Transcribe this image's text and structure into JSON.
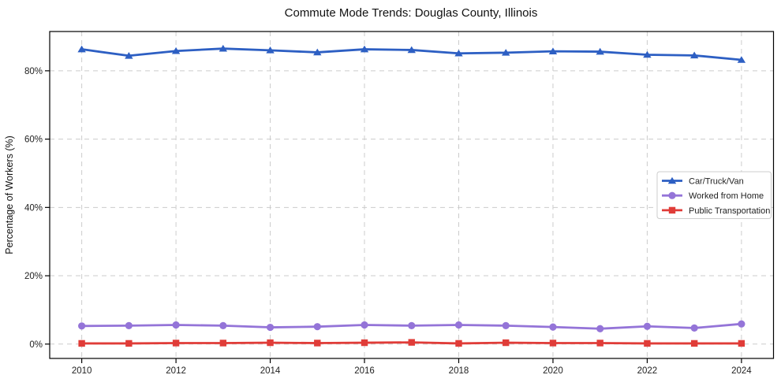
{
  "chart_data": {
    "type": "line",
    "title": "Commute Mode Trends: Douglas County, Illinois",
    "xlabel": "",
    "ylabel": "Percentage of Workers (%)",
    "x": [
      2010,
      2011,
      2012,
      2013,
      2014,
      2015,
      2016,
      2017,
      2018,
      2019,
      2020,
      2021,
      2022,
      2023,
      2024
    ],
    "series": [
      {
        "name": "Car/Truck/Van",
        "color": "#2d5fc3",
        "marker": "triangle",
        "values": [
          86.3,
          84.4,
          85.8,
          86.5,
          86.0,
          85.4,
          86.3,
          86.1,
          85.1,
          85.3,
          85.7,
          85.6,
          84.7,
          84.5,
          83.2
        ]
      },
      {
        "name": "Worked from Home",
        "color": "#9474d8",
        "marker": "circle",
        "values": [
          5.3,
          5.4,
          5.6,
          5.4,
          4.9,
          5.1,
          5.6,
          5.4,
          5.6,
          5.4,
          5.0,
          4.5,
          5.2,
          4.7,
          5.9
        ]
      },
      {
        "name": "Public Transportation",
        "color": "#e03c38",
        "marker": "square",
        "values": [
          0.2,
          0.2,
          0.3,
          0.3,
          0.4,
          0.3,
          0.4,
          0.5,
          0.2,
          0.4,
          0.3,
          0.3,
          0.2,
          0.2,
          0.2
        ]
      }
    ],
    "xticks": [
      2010,
      2012,
      2014,
      2016,
      2018,
      2020,
      2022,
      2024
    ],
    "yticks": [
      0,
      20,
      40,
      60,
      80
    ],
    "ytick_suffix": "%",
    "xlim": [
      2009.32,
      2024.68
    ],
    "ylim": [
      -4.2,
      91.5
    ],
    "grid": true,
    "legend_position": "center right",
    "colors": {
      "grid": "#cccccc",
      "spine": "#000000",
      "background": "#ffffff"
    }
  }
}
